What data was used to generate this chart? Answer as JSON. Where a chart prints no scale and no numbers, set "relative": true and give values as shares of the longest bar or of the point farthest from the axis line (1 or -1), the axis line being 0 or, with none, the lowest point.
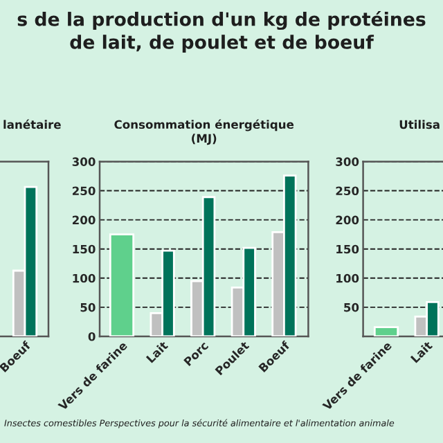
{
  "chart_data": [
    {
      "type": "bar",
      "title": "lanétaire",
      "relative": true,
      "tick_labels": "x",
      "categories": [
        "Boeuf"
      ],
      "series": [
        {
          "color": "#c0c0c0",
          "values": [
            0.44
          ]
        },
        {
          "color": "#00735a",
          "values": [
            1
          ]
        }
      ]
    },
    {
      "type": "bar",
      "title": "s de la production d'un kg de protéines\nde lait, de poulet et de boeuf",
      "subtitle": "Consommation énergétique\n(MJ)",
      "categories": [
        "Vers de farine",
        "Lait",
        "Porc",
        "Poulet",
        "Boeuf"
      ],
      "series": [
        {
          "color": "#5fd08c",
          "values": [
            175,
            null,
            null,
            null,
            null
          ]
        },
        {
          "color": "#c0c0c0",
          "values": [
            null,
            40,
            95,
            84,
            179
          ]
        },
        {
          "color": "#00735a",
          "values": [
            null,
            147,
            239,
            152,
            276
          ]
        }
      ],
      "ylim": [
        0,
        300
      ],
      "yticks": [
        0,
        50,
        100,
        150,
        200,
        250,
        300
      ],
      "grid": "y",
      "annotations": [
        "Insectes comestibles Perspectives pour la sécurité alimentaire et l'alimentation animale"
      ]
    },
    {
      "type": "bar",
      "title": "Utilisa",
      "categories": [
        "Vers de farine",
        "Lait"
      ],
      "series": [
        {
          "color": "#5fd08c",
          "values": [
            16,
            null
          ]
        },
        {
          "color": "#c0c0c0",
          "values": [
            null,
            34
          ]
        },
        {
          "color": "#00735a",
          "values": [
            null,
            59
          ]
        }
      ],
      "ylim": [
        0,
        300
      ],
      "yticks": [
        50,
        100,
        150,
        200,
        250,
        300
      ],
      "grid": "y"
    }
  ]
}
